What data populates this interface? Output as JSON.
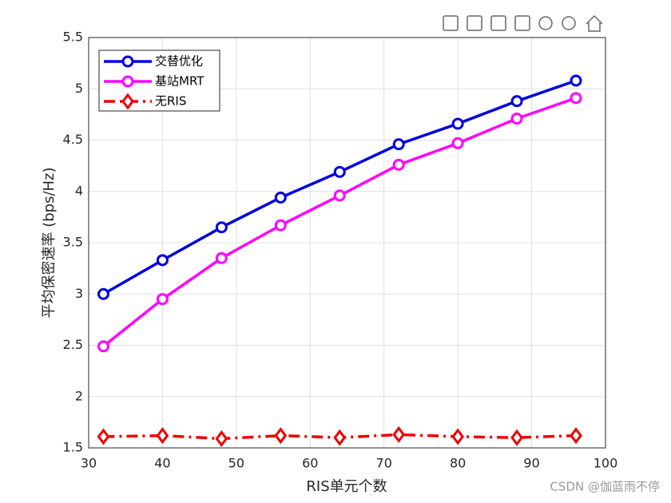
{
  "chart_data": {
    "type": "line",
    "xlabel": "RIS单元个数",
    "ylabel": "平均保密速率 (bps/Hz)",
    "x": [
      32,
      40,
      48,
      56,
      64,
      72,
      80,
      88,
      96
    ],
    "series": [
      {
        "name": "交替优化",
        "color": "#0000e0",
        "marker": "o",
        "linestyle": "solid",
        "values": [
          3.0,
          3.33,
          3.65,
          3.94,
          4.19,
          4.46,
          4.66,
          4.88,
          5.08
        ]
      },
      {
        "name": "基站MRT",
        "color": "#ff00ff",
        "marker": "o",
        "linestyle": "solid",
        "values": [
          2.49,
          2.95,
          3.35,
          3.67,
          3.96,
          4.26,
          4.47,
          4.71,
          4.91
        ]
      },
      {
        "name": "无RIS",
        "color": "#ee0000",
        "marker": "d",
        "linestyle": "dashdot",
        "values": [
          1.61,
          1.62,
          1.59,
          1.62,
          1.6,
          1.63,
          1.61,
          1.6,
          1.62
        ]
      }
    ],
    "xlim": [
      30,
      100
    ],
    "xticks": [
      30,
      40,
      50,
      60,
      70,
      80,
      90,
      100
    ],
    "ylim": [
      1.5,
      5.5
    ],
    "yticks": [
      1.5,
      2,
      2.5,
      3,
      3.5,
      4,
      4.5,
      5,
      5.5
    ],
    "grid": true,
    "legend": "upper left"
  },
  "watermark": "CSDN @伽蓝雨不停"
}
